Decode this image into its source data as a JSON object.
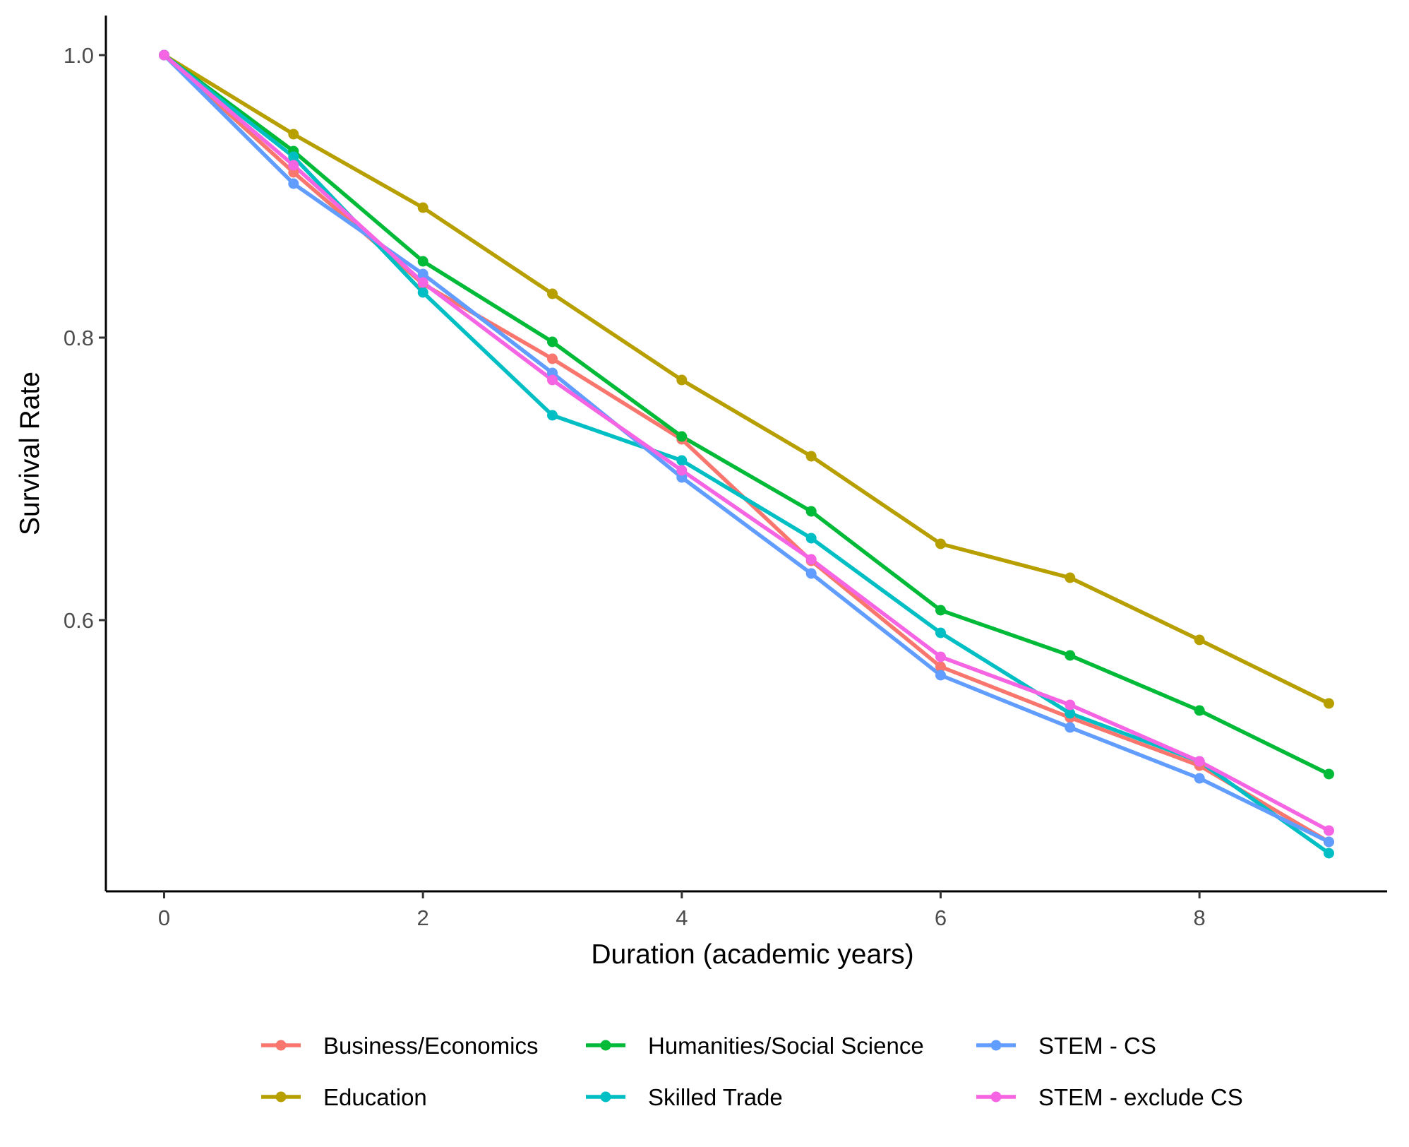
{
  "chart_data": {
    "type": "line",
    "title": "",
    "xlabel": "Duration (academic years)",
    "ylabel": "Survival Rate",
    "xlim": [
      -0.45,
      9.45
    ],
    "ylim": [
      0.408,
      1.028
    ],
    "x_ticks": [
      0,
      2,
      4,
      6,
      8
    ],
    "x_tick_labels": [
      "0",
      "2",
      "4",
      "6",
      "8"
    ],
    "y_ticks": [
      0.6,
      0.8,
      1.0
    ],
    "y_tick_labels": [
      "0.6",
      "0.8",
      "1.0"
    ],
    "grid": false,
    "legend_position": "bottom",
    "x": [
      0,
      1,
      2,
      3,
      4,
      5,
      6,
      7,
      8,
      9
    ],
    "series": [
      {
        "name": "Business/Economics",
        "color": "#F8766D",
        "values": [
          1.0,
          0.917,
          0.838,
          0.785,
          0.728,
          0.642,
          0.567,
          0.531,
          0.497,
          0.443
        ]
      },
      {
        "name": "Education",
        "color": "#B79F00",
        "values": [
          1.0,
          0.944,
          0.892,
          0.831,
          0.77,
          0.716,
          0.654,
          0.63,
          0.586,
          0.541
        ]
      },
      {
        "name": "Humanities/Social Science",
        "color": "#00BA38",
        "values": [
          1.0,
          0.932,
          0.854,
          0.797,
          0.73,
          0.677,
          0.607,
          0.575,
          0.536,
          0.491
        ]
      },
      {
        "name": "Skilled Trade",
        "color": "#00BFC4",
        "values": [
          1.0,
          0.928,
          0.832,
          0.745,
          0.713,
          0.658,
          0.591,
          0.534,
          0.5,
          0.435
        ]
      },
      {
        "name": "STEM - CS",
        "color": "#619CFF",
        "values": [
          1.0,
          0.909,
          0.845,
          0.775,
          0.701,
          0.633,
          0.561,
          0.524,
          0.488,
          0.443
        ]
      },
      {
        "name": "STEM - exclude CS",
        "color": "#F564E3",
        "values": [
          1.0,
          0.922,
          0.839,
          0.77,
          0.706,
          0.643,
          0.574,
          0.54,
          0.5,
          0.451
        ]
      }
    ]
  }
}
